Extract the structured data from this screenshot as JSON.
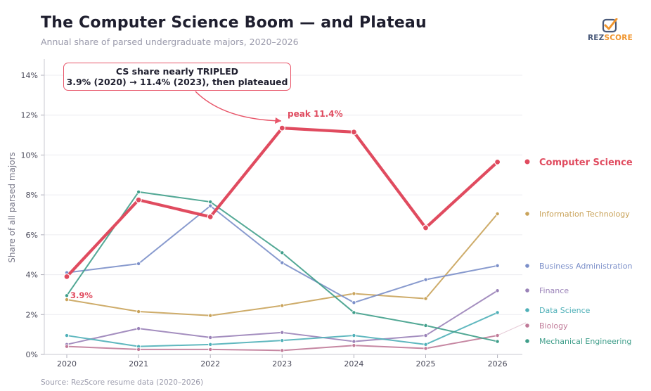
{
  "header": {
    "title": "The Computer Science Boom — and Plateau",
    "subtitle": "Annual share of parsed undergraduate majors, 2020–2026"
  },
  "footer": {
    "source": "Source: RezScore resume data (2020–2026)"
  },
  "logo": {
    "part1": "REZ",
    "part2": "SCORE",
    "icon": "checkmark-badge-icon"
  },
  "annotations": {
    "callout_line1": "CS share nearly TRIPLED",
    "callout_line2": "3.9% (2020) → 11.4% (2023), then plateaued",
    "peak_label": "peak 11.4%",
    "start_label": "3.9%"
  },
  "chart_data": {
    "type": "line",
    "title": "The Computer Science Boom — and Plateau",
    "subtitle": "Annual share of parsed undergraduate majors, 2020–2026",
    "xlabel": "",
    "ylabel": "Share of all parsed majors",
    "x": [
      2020,
      2021,
      2022,
      2023,
      2024,
      2025,
      2026
    ],
    "ylim": [
      0,
      14
    ],
    "yticks": [
      0,
      2,
      4,
      6,
      8,
      10,
      12,
      14
    ],
    "ytick_labels": [
      "0%",
      "2%",
      "4%",
      "6%",
      "8%",
      "10%",
      "12%",
      "14%"
    ],
    "grid": "horizontal",
    "legend": "right (direct labels)",
    "series": [
      {
        "name": "Computer Science",
        "color": "#e04b5f",
        "emphasis": true,
        "values": [
          3.9,
          7.75,
          6.9,
          11.35,
          11.15,
          6.35,
          9.65
        ]
      },
      {
        "name": "Information Technology",
        "color": "#c9a35a",
        "values": [
          2.75,
          2.15,
          1.95,
          2.45,
          3.05,
          2.8,
          7.05
        ]
      },
      {
        "name": "Business Administration",
        "color": "#7b8fc9",
        "values": [
          4.1,
          4.55,
          7.45,
          4.6,
          2.6,
          3.75,
          4.45
        ]
      },
      {
        "name": "Finance",
        "color": "#9a82b8",
        "values": [
          0.5,
          1.3,
          0.85,
          1.1,
          0.65,
          0.95,
          3.2
        ]
      },
      {
        "name": "Data Science",
        "color": "#4fb0b8",
        "values": [
          0.95,
          0.4,
          0.5,
          0.7,
          0.95,
          0.5,
          2.1
        ]
      },
      {
        "name": "Biology",
        "color": "#c07a98",
        "values": [
          0.4,
          0.25,
          0.25,
          0.2,
          0.45,
          0.3,
          0.95
        ]
      },
      {
        "name": "Mechanical Engineering",
        "color": "#3f9e8a",
        "values": [
          2.95,
          8.15,
          7.65,
          5.1,
          2.1,
          1.45,
          0.65
        ]
      }
    ]
  }
}
